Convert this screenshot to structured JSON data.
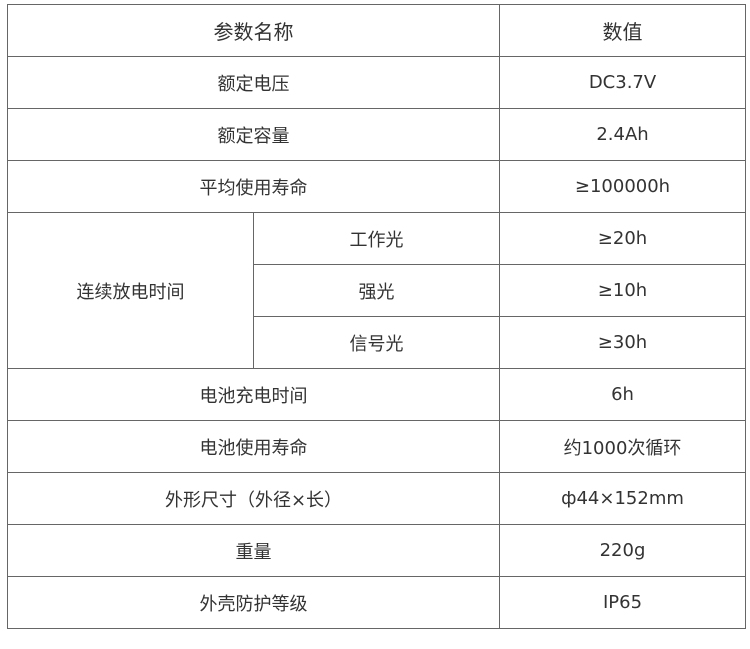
{
  "header": {
    "param": "参数名称",
    "value": "数值"
  },
  "rows": [
    {
      "name": "额定电压",
      "value": "DC3.7V"
    },
    {
      "name": "额定容量",
      "value": "2.4Ah"
    },
    {
      "name": "平均使用寿命",
      "value": "≥100000h"
    }
  ],
  "discharge": {
    "name": "连续放电时间",
    "subs": [
      {
        "name": "工作光",
        "value": "≥20h"
      },
      {
        "name": "强光",
        "value": "≥10h"
      },
      {
        "name": "信号光",
        "value": "≥30h"
      }
    ]
  },
  "rows2": [
    {
      "name": "电池充电时间",
      "value": "6h"
    },
    {
      "name": "电池使用寿命",
      "value": "约1000次循环"
    },
    {
      "name": "外形尺寸（外径×长）",
      "value": "ф44×152mm"
    },
    {
      "name": "重量",
      "value": "220g"
    },
    {
      "name": "外壳防护等级",
      "value": "IP65"
    }
  ]
}
